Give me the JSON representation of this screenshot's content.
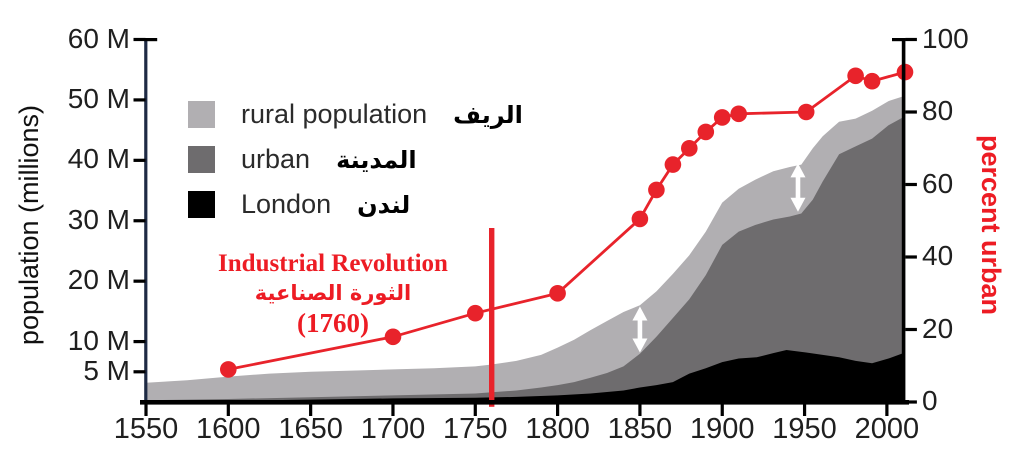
{
  "colors": {
    "rural": "#b1afb2",
    "urban": "#6e6c6e",
    "london": "#000000",
    "red_line": "#e8232b",
    "red_text": "#ed1c24",
    "axis": "#000000",
    "left_spine": "#1e2a44",
    "arrow": "#ffffff",
    "tick_text": "#1f1f1f"
  },
  "left_axis": {
    "title": "population (millions)",
    "ticks": [
      {
        "value": 5,
        "label": "5 M"
      },
      {
        "value": 10,
        "label": "10 M"
      },
      {
        "value": 20,
        "label": "20 M"
      },
      {
        "value": 30,
        "label": "30 M"
      },
      {
        "value": 40,
        "label": "40 M"
      },
      {
        "value": 50,
        "label": "50 M"
      },
      {
        "value": 60,
        "label": "60 M"
      }
    ]
  },
  "right_axis": {
    "title": "percent urban",
    "ticks": [
      {
        "value": 0,
        "label": "0"
      },
      {
        "value": 20,
        "label": "20"
      },
      {
        "value": 40,
        "label": "40"
      },
      {
        "value": 60,
        "label": "60"
      },
      {
        "value": 80,
        "label": "80"
      },
      {
        "value": 100,
        "label": "100"
      }
    ]
  },
  "x_axis": {
    "ticks": [
      {
        "value": 1550,
        "label": "1550"
      },
      {
        "value": 1600,
        "label": "1600"
      },
      {
        "value": 1650,
        "label": "1650"
      },
      {
        "value": 1700,
        "label": "1700"
      },
      {
        "value": 1750,
        "label": "1750"
      },
      {
        "value": 1800,
        "label": "1800"
      },
      {
        "value": 1850,
        "label": "1850"
      },
      {
        "value": 1900,
        "label": "1900"
      },
      {
        "value": 1950,
        "label": "1950"
      },
      {
        "value": 2000,
        "label": "2000"
      }
    ]
  },
  "legend": {
    "items": [
      {
        "label": "rural population",
        "label_ar": "الريف",
        "color": "#b1afb2"
      },
      {
        "label": "urban",
        "label_ar": "المدينة",
        "color": "#6e6c6e"
      },
      {
        "label": "London",
        "label_ar": "لندن",
        "color": "#000000"
      }
    ]
  },
  "annotation": {
    "line1": "Industrial Revolution",
    "line2": "الثورة الصناعية",
    "line3": "(1760)",
    "year": 1760
  },
  "chart_data": {
    "type": "area",
    "x_range": [
      1550,
      2011
    ],
    "left_y": {
      "label": "population (millions)",
      "range": [
        0,
        60
      ],
      "unit": "millions"
    },
    "right_y": {
      "label": "percent urban",
      "range": [
        0,
        100
      ],
      "unit": "%"
    },
    "grid": false,
    "legend_position": "upper-left-inside",
    "series": [
      {
        "name": "total population (top of stack; visible band = rural population)",
        "style": "area",
        "axis": "left",
        "color_key": "rural",
        "points": [
          [
            1550,
            3.2
          ],
          [
            1575,
            3.6
          ],
          [
            1600,
            4.2
          ],
          [
            1625,
            4.7
          ],
          [
            1650,
            5.0
          ],
          [
            1675,
            5.2
          ],
          [
            1700,
            5.4
          ],
          [
            1725,
            5.6
          ],
          [
            1750,
            5.9
          ],
          [
            1760,
            6.2
          ],
          [
            1775,
            6.8
          ],
          [
            1790,
            7.8
          ],
          [
            1800,
            9.0
          ],
          [
            1810,
            10.3
          ],
          [
            1820,
            11.9
          ],
          [
            1830,
            13.4
          ],
          [
            1840,
            14.9
          ],
          [
            1850,
            16.0
          ],
          [
            1860,
            18.3
          ],
          [
            1870,
            21.2
          ],
          [
            1880,
            24.3
          ],
          [
            1890,
            28.2
          ],
          [
            1900,
            33.0
          ],
          [
            1910,
            35.3
          ],
          [
            1920,
            36.8
          ],
          [
            1931,
            38.2
          ],
          [
            1941,
            38.9
          ],
          [
            1948,
            39.3
          ],
          [
            1955,
            42.0
          ],
          [
            1961,
            44.0
          ],
          [
            1971,
            46.4
          ],
          [
            1981,
            46.9
          ],
          [
            1991,
            48.2
          ],
          [
            2001,
            49.8
          ],
          [
            2011,
            50.7
          ]
        ]
      },
      {
        "name": "urban population (includes London)",
        "style": "area",
        "axis": "left",
        "color_key": "urban",
        "points": [
          [
            1550,
            0.3
          ],
          [
            1600,
            0.5
          ],
          [
            1650,
            0.8
          ],
          [
            1700,
            1.1
          ],
          [
            1750,
            1.4
          ],
          [
            1760,
            1.6
          ],
          [
            1775,
            1.9
          ],
          [
            1790,
            2.4
          ],
          [
            1800,
            2.8
          ],
          [
            1810,
            3.3
          ],
          [
            1820,
            4.0
          ],
          [
            1830,
            4.8
          ],
          [
            1840,
            5.9
          ],
          [
            1850,
            8.0
          ],
          [
            1860,
            10.8
          ],
          [
            1870,
            13.9
          ],
          [
            1880,
            17.0
          ],
          [
            1890,
            21.0
          ],
          [
            1900,
            26.0
          ],
          [
            1910,
            28.2
          ],
          [
            1920,
            29.3
          ],
          [
            1931,
            30.2
          ],
          [
            1941,
            30.7
          ],
          [
            1948,
            31.2
          ],
          [
            1955,
            33.5
          ],
          [
            1961,
            36.5
          ],
          [
            1971,
            41.0
          ],
          [
            1981,
            42.3
          ],
          [
            1991,
            43.6
          ],
          [
            2001,
            45.8
          ],
          [
            2011,
            47.3
          ]
        ]
      },
      {
        "name": "London population",
        "style": "area",
        "axis": "left",
        "color_key": "london",
        "points": [
          [
            1550,
            0.08
          ],
          [
            1600,
            0.2
          ],
          [
            1650,
            0.4
          ],
          [
            1700,
            0.6
          ],
          [
            1750,
            0.7
          ],
          [
            1775,
            0.85
          ],
          [
            1800,
            1.1
          ],
          [
            1820,
            1.4
          ],
          [
            1840,
            1.9
          ],
          [
            1850,
            2.4
          ],
          [
            1860,
            2.8
          ],
          [
            1870,
            3.3
          ],
          [
            1880,
            4.7
          ],
          [
            1890,
            5.6
          ],
          [
            1900,
            6.6
          ],
          [
            1910,
            7.2
          ],
          [
            1921,
            7.4
          ],
          [
            1931,
            8.1
          ],
          [
            1939,
            8.6
          ],
          [
            1951,
            8.2
          ],
          [
            1961,
            7.8
          ],
          [
            1971,
            7.4
          ],
          [
            1981,
            6.8
          ],
          [
            1991,
            6.4
          ],
          [
            2001,
            7.2
          ],
          [
            2011,
            8.2
          ]
        ]
      },
      {
        "name": "percent urban",
        "style": "line-markers",
        "axis": "right",
        "color_key": "red_line",
        "points": [
          [
            1600,
            9
          ],
          [
            1700,
            18
          ],
          [
            1750,
            24.5
          ],
          [
            1800,
            30
          ],
          [
            1850,
            50.5
          ],
          [
            1860,
            58.5
          ],
          [
            1870,
            65.5
          ],
          [
            1880,
            70
          ],
          [
            1890,
            74.5
          ],
          [
            1900,
            78.5
          ],
          [
            1910,
            79.5
          ],
          [
            1951,
            80
          ],
          [
            1981,
            90
          ],
          [
            1991,
            88.5
          ],
          [
            2011,
            91
          ]
        ]
      }
    ],
    "annotations": [
      {
        "type": "vline",
        "year": 1760,
        "label": "Industrial Revolution الثورة الصناعية (1760)",
        "color_key": "red_line",
        "from_M": -0.8,
        "to_M": 28.8
      },
      {
        "type": "double_arrow",
        "year": 1850,
        "from_M": 8.2,
        "to_M": 15.8,
        "color_key": "arrow"
      },
      {
        "type": "double_arrow",
        "year": 1946,
        "from_M": 31.5,
        "to_M": 39.5,
        "color_key": "arrow"
      }
    ]
  }
}
